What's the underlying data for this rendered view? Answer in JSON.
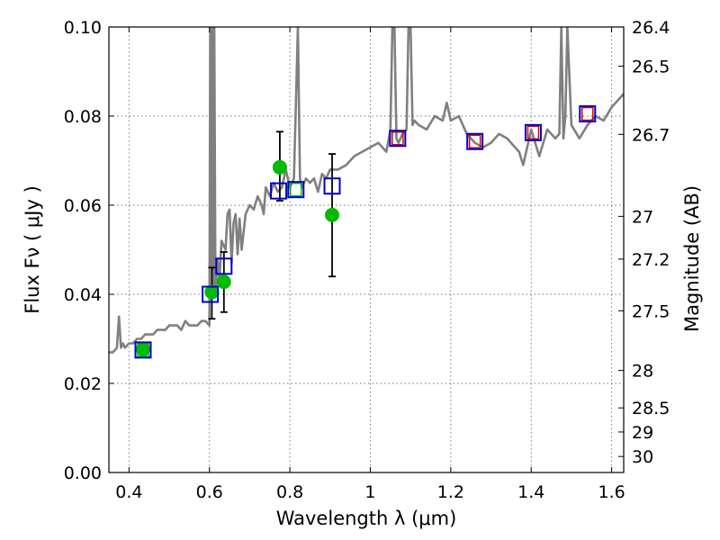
{
  "chart_data": {
    "type": "scatter",
    "xlabel": "Wavelength  λ (μm)",
    "ylabel": "Flux  Fν  ( μJy )",
    "ylabel_right": "Magnitude (AB)",
    "xlim": [
      0.35,
      1.63
    ],
    "ylim": [
      0.0,
      0.1
    ],
    "grid": true,
    "x_ticks": [
      0.4,
      0.6,
      0.8,
      1.0,
      1.2,
      1.4,
      1.6
    ],
    "x_tick_labels": [
      "0.4",
      "0.6",
      "0.8",
      "1",
      "1.2",
      "1.4",
      "1.6"
    ],
    "y_ticks": [
      0.0,
      0.02,
      0.04,
      0.06,
      0.08,
      0.1
    ],
    "y_tick_labels": [
      "0.00",
      "0.02",
      "0.04",
      "0.06",
      "0.08",
      "0.10"
    ],
    "right_ticks": [
      {
        "label": "26.4",
        "flux": 0.1
      },
      {
        "label": "26.5",
        "flux": 0.0912
      },
      {
        "label": "26.7",
        "flux": 0.0759
      },
      {
        "label": "27",
        "flux": 0.0575
      },
      {
        "label": "27.2",
        "flux": 0.0479
      },
      {
        "label": "27.5",
        "flux": 0.0363
      },
      {
        "label": "28",
        "flux": 0.0229
      },
      {
        "label": "28.5",
        "flux": 0.0145
      },
      {
        "label": "29",
        "flux": 0.0091
      },
      {
        "label": "30",
        "flux": 0.0036
      }
    ],
    "model_spectrum": {
      "name": "model SED",
      "color": "#808080",
      "x": [
        0.35,
        0.36,
        0.37,
        0.375,
        0.38,
        0.385,
        0.39,
        0.4,
        0.41,
        0.42,
        0.43,
        0.44,
        0.45,
        0.46,
        0.47,
        0.48,
        0.49,
        0.5,
        0.51,
        0.52,
        0.53,
        0.54,
        0.55,
        0.56,
        0.57,
        0.58,
        0.59,
        0.6,
        0.602,
        0.605,
        0.608,
        0.61,
        0.612,
        0.615,
        0.62,
        0.625,
        0.63,
        0.64,
        0.645,
        0.65,
        0.655,
        0.66,
        0.665,
        0.67,
        0.675,
        0.68,
        0.69,
        0.7,
        0.71,
        0.72,
        0.73,
        0.735,
        0.74,
        0.75,
        0.76,
        0.77,
        0.78,
        0.79,
        0.8,
        0.81,
        0.82,
        0.825,
        0.83,
        0.835,
        0.84,
        0.85,
        0.86,
        0.87,
        0.88,
        0.89,
        0.9,
        0.92,
        0.94,
        0.96,
        0.98,
        1.0,
        1.02,
        1.04,
        1.05,
        1.055,
        1.06,
        1.065,
        1.07,
        1.08,
        1.09,
        1.095,
        1.1,
        1.105,
        1.11,
        1.12,
        1.14,
        1.16,
        1.18,
        1.19,
        1.2,
        1.22,
        1.24,
        1.26,
        1.28,
        1.3,
        1.32,
        1.34,
        1.36,
        1.37,
        1.38,
        1.39,
        1.4,
        1.41,
        1.42,
        1.44,
        1.46,
        1.47,
        1.475,
        1.48,
        1.485,
        1.49,
        1.5,
        1.52,
        1.54,
        1.56,
        1.58,
        1.6,
        1.63
      ],
      "y": [
        0.027,
        0.027,
        0.028,
        0.035,
        0.028,
        0.029,
        0.028,
        0.029,
        0.029,
        0.03,
        0.03,
        0.031,
        0.031,
        0.031,
        0.032,
        0.032,
        0.032,
        0.033,
        0.033,
        0.033,
        0.032,
        0.034,
        0.033,
        0.033,
        0.033,
        0.034,
        0.034,
        0.033,
        0.1,
        0.046,
        0.1,
        0.042,
        0.1,
        0.04,
        0.048,
        0.043,
        0.052,
        0.05,
        0.058,
        0.059,
        0.047,
        0.056,
        0.058,
        0.049,
        0.057,
        0.05,
        0.058,
        0.06,
        0.059,
        0.062,
        0.06,
        0.058,
        0.064,
        0.062,
        0.065,
        0.063,
        0.064,
        0.068,
        0.064,
        0.066,
        0.1,
        0.066,
        0.064,
        0.065,
        0.066,
        0.065,
        0.066,
        0.063,
        0.067,
        0.066,
        0.068,
        0.068,
        0.069,
        0.071,
        0.072,
        0.073,
        0.074,
        0.072,
        0.077,
        0.1,
        0.1,
        0.075,
        0.074,
        0.076,
        0.077,
        0.1,
        0.1,
        0.078,
        0.079,
        0.078,
        0.077,
        0.08,
        0.079,
        0.083,
        0.079,
        0.08,
        0.076,
        0.074,
        0.073,
        0.074,
        0.076,
        0.075,
        0.073,
        0.072,
        0.069,
        0.073,
        0.077,
        0.074,
        0.071,
        0.077,
        0.075,
        0.076,
        0.1,
        0.075,
        0.08,
        0.1,
        0.078,
        0.075,
        0.078,
        0.08,
        0.079,
        0.082,
        0.085
      ]
    },
    "observed_points": {
      "name": "observed photometry",
      "color": "#00bb00",
      "x": [
        0.435,
        0.606,
        0.636,
        0.775,
        0.905
      ],
      "y": [
        0.0277,
        0.0405,
        0.0428,
        0.0685,
        0.0578
      ],
      "yerr_low": [
        0.0,
        0.0345,
        0.036,
        0.061,
        0.044
      ],
      "yerr_high": [
        0.0,
        0.046,
        0.0495,
        0.0765,
        0.0715
      ]
    },
    "model_photometry": {
      "name": "model photometry",
      "color": "#0000cc",
      "x": [
        0.435,
        0.602,
        0.636,
        0.772,
        0.815,
        0.905,
        1.068,
        1.26,
        1.405,
        1.54
      ],
      "y": [
        0.0275,
        0.04,
        0.0463,
        0.0632,
        0.0635,
        0.0643,
        0.075,
        0.0743,
        0.0763,
        0.0805
      ]
    },
    "red_markers": {
      "name": "red squares",
      "color": "#dd0000",
      "x": [
        1.068,
        1.26,
        1.405,
        1.54
      ],
      "y": [
        0.075,
        0.0743,
        0.0763,
        0.0805
      ]
    },
    "green_markers": {
      "name": "green squares",
      "color": "#00bb00",
      "x": [
        0.435,
        0.815
      ],
      "y": [
        0.0275,
        0.0635
      ]
    }
  }
}
